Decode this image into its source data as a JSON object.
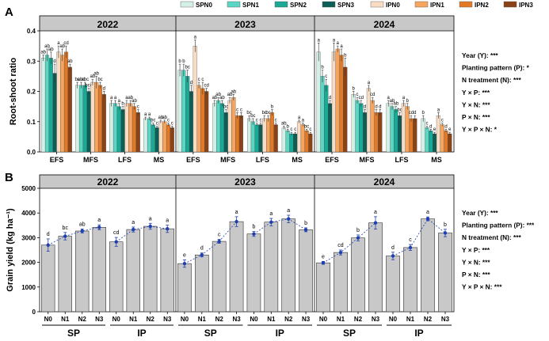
{
  "chart_data": [
    {
      "panel": "A",
      "type": "bar",
      "ylabel": "Root-shoot ratio",
      "ylim": [
        0,
        0.4
      ],
      "yticks": [
        "0.0",
        "0.1",
        "0.2",
        "0.3",
        "0.4"
      ],
      "years": [
        "2022",
        "2023",
        "2024"
      ],
      "stages": [
        "EFS",
        "MFS",
        "LFS",
        "MS"
      ],
      "series_names": [
        "SPN0",
        "SPN1",
        "SPN2",
        "SPN3",
        "IPN0",
        "IPN1",
        "IPN2",
        "IPN3"
      ],
      "colors": [
        "#d4efe6",
        "#5ad6c4",
        "#1aa995",
        "#0d5e57",
        "#f9dcc4",
        "#f5a55f",
        "#e07a28",
        "#8a4316"
      ],
      "values": [
        [
          [
            0.31,
            0.32,
            0.31,
            0.26,
            0.33,
            0.32,
            0.33,
            0.28
          ],
          [
            0.22,
            0.22,
            0.22,
            0.2,
            0.23,
            0.23,
            0.22,
            0.19
          ],
          [
            0.16,
            0.16,
            0.15,
            0.14,
            0.16,
            0.16,
            0.15,
            0.13
          ],
          [
            0.11,
            0.11,
            0.09,
            0.08,
            0.1,
            0.1,
            0.09,
            0.08
          ]
        ],
        [
          [
            0.27,
            0.27,
            0.25,
            0.2,
            0.35,
            0.22,
            0.21,
            0.2
          ],
          [
            0.16,
            0.17,
            0.16,
            0.13,
            0.17,
            0.18,
            0.12,
            0.12
          ],
          [
            0.11,
            0.1,
            0.09,
            0.09,
            0.11,
            0.11,
            0.13,
            0.09
          ],
          [
            0.08,
            0.07,
            0.06,
            0.06,
            0.1,
            0.09,
            0.07,
            0.06
          ]
        ],
        [
          [
            0.33,
            0.25,
            0.22,
            0.16,
            0.33,
            0.34,
            0.32,
            0.28
          ],
          [
            0.19,
            0.17,
            0.16,
            0.13,
            0.21,
            0.17,
            0.13,
            0.13
          ],
          [
            0.16,
            0.15,
            0.14,
            0.12,
            0.16,
            0.15,
            0.11,
            0.11
          ],
          [
            0.11,
            0.08,
            0.07,
            0.06,
            0.12,
            0.09,
            0.07,
            0.06
          ]
        ]
      ],
      "errors": [
        [
          [
            0.01,
            0.02,
            0.02,
            0.03,
            0.02,
            0.02,
            0.02,
            0.01
          ],
          [
            0.01,
            0.01,
            0.01,
            0.01,
            0.01,
            0.02,
            0.01,
            0.01
          ],
          [
            0.01,
            0.01,
            0.01,
            0.01,
            0.01,
            0.01,
            0.01,
            0.01
          ],
          [
            0.005,
            0.005,
            0.005,
            0.005,
            0.005,
            0.005,
            0.005,
            0.005
          ]
        ],
        [
          [
            0.02,
            0.02,
            0.02,
            0.02,
            0.02,
            0.01,
            0.02,
            0.01
          ],
          [
            0.01,
            0.01,
            0.01,
            0.01,
            0.01,
            0.01,
            0.01,
            0.01
          ],
          [
            0.01,
            0.01,
            0.005,
            0.005,
            0.01,
            0.01,
            0.01,
            0.005
          ],
          [
            0.005,
            0.005,
            0.005,
            0.005,
            0.005,
            0.005,
            0.005,
            0.005
          ]
        ],
        [
          [
            0.03,
            0.02,
            0.02,
            0.01,
            0.03,
            0.01,
            0.02,
            0.03
          ],
          [
            0.01,
            0.01,
            0.01,
            0.01,
            0.01,
            0.01,
            0.01,
            0.01
          ],
          [
            0.01,
            0.01,
            0.01,
            0.01,
            0.01,
            0.01,
            0.01,
            0.01
          ],
          [
            0.01,
            0.005,
            0.005,
            0.005,
            0.01,
            0.005,
            0.005,
            0.005
          ]
        ]
      ],
      "letters": [
        [
          [
            "ab",
            "ab",
            "ab",
            "d",
            "a",
            "ab",
            "cd",
            "ab"
          ],
          [
            "bc",
            "abc",
            "abc",
            "bcd",
            "ab",
            "ab",
            "bc",
            "d"
          ],
          [
            "a",
            "a",
            "a",
            "b",
            "a",
            "ab",
            "ab",
            "c"
          ],
          [
            "a",
            "a",
            "bc",
            "c",
            "ab",
            "ab",
            "c",
            "c"
          ]
        ],
        [
          [
            "b",
            "b",
            "bc",
            "d",
            "a",
            "c",
            "c",
            "cd"
          ],
          [
            "ab",
            "ab",
            "ab",
            "bc",
            "ab",
            "ab",
            "c",
            "c"
          ],
          [
            "bc",
            "bc",
            "c",
            "c",
            "bc",
            "bc",
            "b",
            "c"
          ],
          [
            "ab",
            "b",
            "c",
            "c",
            "a",
            "a",
            "bc",
            "c"
          ]
        ],
        [
          [
            "a",
            "b",
            "c",
            "d",
            "a",
            "a",
            "a",
            "b"
          ],
          [
            "b",
            "c",
            "cd",
            "d",
            "a",
            "cd",
            "d",
            "d"
          ],
          [
            "a",
            "ab",
            "ab",
            "bc",
            "a",
            "b",
            "cd",
            "d"
          ],
          [
            "b",
            "c",
            "d",
            "e",
            "a",
            "c",
            "d",
            "e"
          ]
        ]
      ],
      "stats": [
        "Year (Y): ***",
        "Planting pattern (P): *",
        "N treatment (N): ***",
        "Y × P: ***",
        "Y × N: ***",
        "P × N: ***",
        "Y × P × N: *"
      ]
    },
    {
      "panel": "B",
      "type": "bar",
      "ylabel": "Grain yield (kg ha⁻¹)",
      "ylim": [
        0,
        5000
      ],
      "yticks": [
        "0",
        "1000",
        "2000",
        "3000",
        "4000",
        "5000"
      ],
      "years": [
        "2022",
        "2023",
        "2024"
      ],
      "categories": [
        "N0",
        "N1",
        "N2",
        "N3",
        "N0",
        "N1",
        "N2",
        "N3"
      ],
      "groups": [
        "SP",
        "IP"
      ],
      "values": [
        [
          2700,
          3060,
          3270,
          3420,
          2830,
          3330,
          3460,
          3360
        ],
        [
          1950,
          2300,
          2850,
          3650,
          3150,
          3630,
          3760,
          3320
        ],
        [
          1980,
          2400,
          2990,
          3600,
          2260,
          2600,
          3760,
          3190
        ]
      ],
      "errors": [
        [
          250,
          150,
          80,
          100,
          180,
          100,
          120,
          150
        ],
        [
          150,
          80,
          80,
          200,
          100,
          150,
          150,
          80
        ],
        [
          60,
          100,
          120,
          250,
          150,
          120,
          80,
          150
        ]
      ],
      "letters": [
        [
          "d",
          "bc",
          "ab",
          "a",
          "cd",
          "a",
          "a",
          "a"
        ],
        [
          "e",
          "d",
          "c",
          "a",
          "b",
          "a",
          "a",
          "b"
        ],
        [
          "e",
          "cd",
          "b",
          "a",
          "d",
          "c",
          "a",
          "b"
        ]
      ],
      "stats": [
        "Year (Y): ***",
        "Planting pattern (P): ***",
        "N treatment (N): ***",
        "Y × P: ***",
        "Y × N: ***",
        "P × N: ***",
        "Y × P × N: ***"
      ]
    }
  ],
  "panel_labels": [
    "A",
    "B"
  ]
}
